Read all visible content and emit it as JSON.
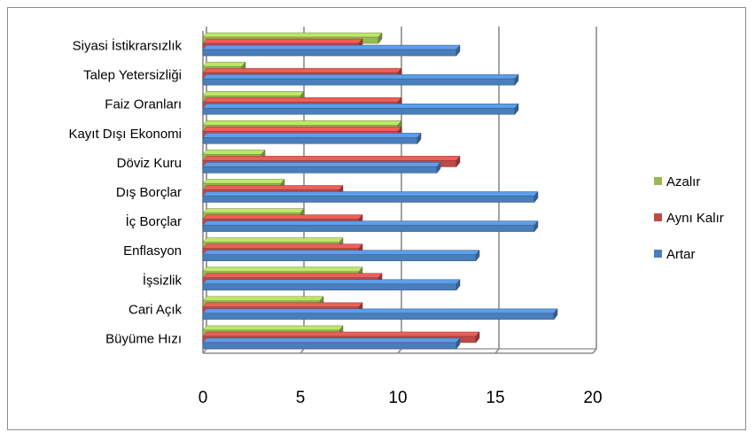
{
  "chart_data": {
    "type": "bar",
    "orientation": "horizontal",
    "style": "3d-clustered",
    "title": "",
    "xlabel": "",
    "ylabel": "",
    "categories": [
      "Büyüme Hızı",
      "Cari Açık",
      "İşsizlik",
      "Enflasyon",
      "İç Borçlar",
      "Dış Borçlar",
      "Döviz Kuru",
      "Kayıt Dışı Ekonomi",
      "Faiz Oranları",
      "Talep Yetersizliği",
      "Siyasi İstikrarsızlık"
    ],
    "series": [
      {
        "name": "Artar",
        "color": "#4a7ebb",
        "values": [
          13,
          18,
          13,
          14,
          17,
          17,
          12,
          11,
          16,
          16,
          13
        ]
      },
      {
        "name": "Aynı Kalır",
        "color": "#be4b48",
        "values": [
          14,
          8,
          9,
          8,
          8,
          7,
          13,
          10,
          10,
          10,
          8
        ]
      },
      {
        "name": "Azalır",
        "color": "#98b954",
        "values": [
          7,
          6,
          8,
          7,
          5,
          4,
          3,
          10,
          5,
          2,
          9
        ]
      }
    ],
    "xlim": [
      0,
      20
    ],
    "xticks": [
      "0",
      "5",
      "10",
      "15",
      "20"
    ],
    "grid": true,
    "legend": {
      "position": "right",
      "entries": [
        "Azalır",
        "Aynı Kalır",
        "Artar"
      ]
    }
  }
}
